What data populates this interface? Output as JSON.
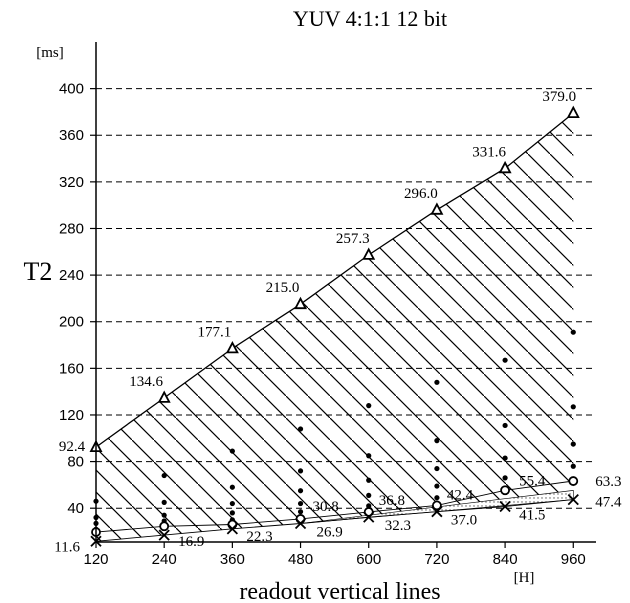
{
  "chart_data": {
    "type": "line",
    "title": "YUV 4:1:1  12 bit",
    "xlabel": "readout vertical lines",
    "ylabel": "T2",
    "x_unit": "[H]",
    "y_unit": "[ms]",
    "x": [
      120,
      240,
      360,
      480,
      600,
      720,
      840,
      960
    ],
    "x_tick_labels": [
      "120",
      "240",
      "360",
      "480",
      "600",
      "720",
      "840",
      "960"
    ],
    "y_tick_labels": [
      "40",
      "80",
      "120",
      "160",
      "200",
      "240",
      "280",
      "320",
      "360",
      "400"
    ],
    "y_ticks": [
      40,
      80,
      120,
      160,
      200,
      240,
      280,
      320,
      360,
      400
    ],
    "xlim": [
      120,
      1000
    ],
    "ylim": [
      11,
      440
    ],
    "grid": "horizontal dashed",
    "series": [
      {
        "marker": "triangle",
        "values": [
          92.4,
          134.6,
          177.1,
          215.0,
          257.3,
          296.0,
          331.6,
          379.0
        ],
        "labels": [
          "92.4",
          "134.6",
          "177.1",
          "215.0",
          "257.3",
          "296.0",
          "331.6",
          "379.0"
        ]
      },
      {
        "marker": "circle",
        "values": [
          19.5,
          24.5,
          26.0,
          30.8,
          36.8,
          42.4,
          55.4,
          63.3
        ],
        "labels": [
          "",
          "",
          "",
          "30.8",
          "36.8",
          "42.4",
          "55.4",
          "63.3"
        ]
      },
      {
        "marker": "x",
        "values": [
          11.6,
          16.9,
          22.3,
          26.9,
          32.3,
          37.0,
          41.5,
          47.4
        ],
        "labels": [
          "11.6",
          "16.9",
          "22.3",
          "26.9",
          "32.3",
          "37.0",
          "41.5",
          "47.4"
        ]
      }
    ],
    "scatter_dots": [
      {
        "x": 120,
        "y": 46
      },
      {
        "x": 120,
        "y": 32
      },
      {
        "x": 120,
        "y": 27
      },
      {
        "x": 120,
        "y": 22
      },
      {
        "x": 240,
        "y": 68
      },
      {
        "x": 240,
        "y": 45
      },
      {
        "x": 240,
        "y": 34
      },
      {
        "x": 240,
        "y": 29
      },
      {
        "x": 240,
        "y": 23
      },
      {
        "x": 360,
        "y": 89
      },
      {
        "x": 360,
        "y": 58
      },
      {
        "x": 360,
        "y": 44
      },
      {
        "x": 360,
        "y": 36
      },
      {
        "x": 360,
        "y": 30
      },
      {
        "x": 480,
        "y": 108
      },
      {
        "x": 480,
        "y": 72
      },
      {
        "x": 480,
        "y": 55
      },
      {
        "x": 480,
        "y": 44
      },
      {
        "x": 480,
        "y": 37
      },
      {
        "x": 600,
        "y": 128
      },
      {
        "x": 600,
        "y": 85
      },
      {
        "x": 600,
        "y": 64
      },
      {
        "x": 600,
        "y": 51
      },
      {
        "x": 600,
        "y": 42
      },
      {
        "x": 720,
        "y": 148
      },
      {
        "x": 720,
        "y": 98
      },
      {
        "x": 720,
        "y": 74
      },
      {
        "x": 720,
        "y": 59
      },
      {
        "x": 720,
        "y": 49
      },
      {
        "x": 840,
        "y": 167
      },
      {
        "x": 840,
        "y": 111
      },
      {
        "x": 840,
        "y": 83
      },
      {
        "x": 840,
        "y": 66
      },
      {
        "x": 840,
        "y": 55
      },
      {
        "x": 960,
        "y": 191
      },
      {
        "x": 960,
        "y": 127
      },
      {
        "x": 960,
        "y": 95
      },
      {
        "x": 960,
        "y": 76
      },
      {
        "x": 960,
        "y": 63
      }
    ]
  }
}
